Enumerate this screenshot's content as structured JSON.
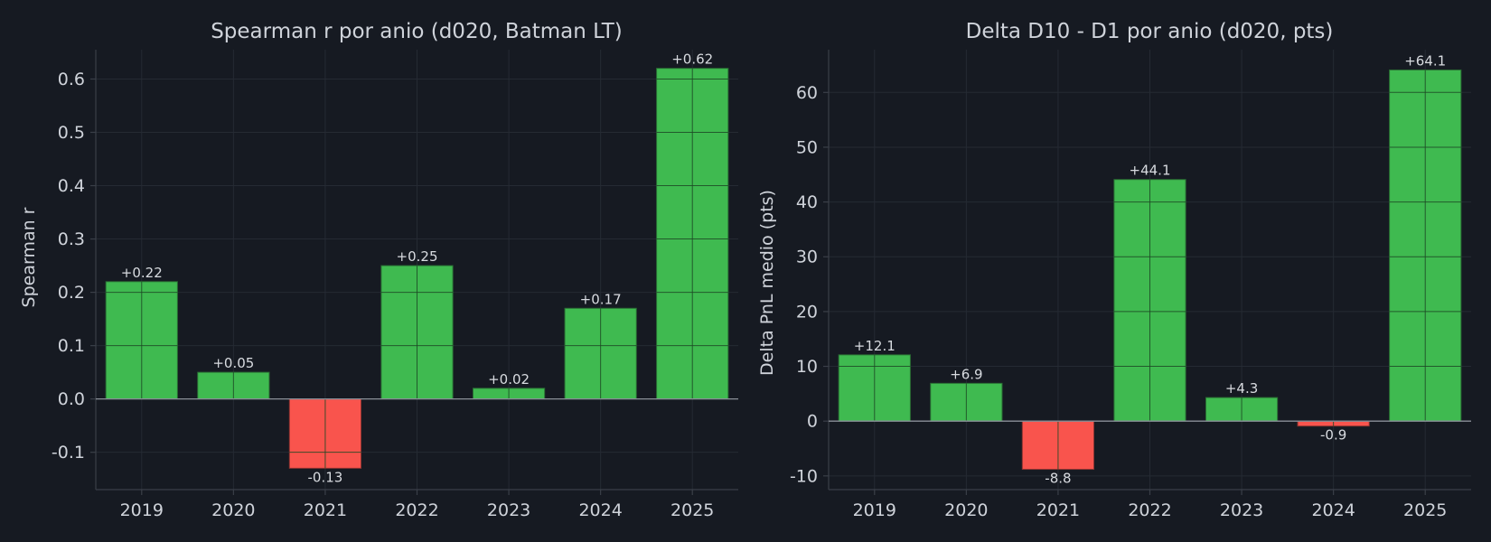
{
  "colors": {
    "background": "#161a22",
    "positive": "#3fba50",
    "negative": "#f9544d",
    "text": "#cfd3da"
  },
  "chart_data": [
    {
      "type": "bar",
      "title": "Spearman r por anio (d020, Batman LT)",
      "xlabel": "",
      "ylabel": "Spearman r",
      "categories": [
        "2019",
        "2020",
        "2021",
        "2022",
        "2023",
        "2024",
        "2025"
      ],
      "values": [
        0.22,
        0.05,
        -0.13,
        0.25,
        0.02,
        0.17,
        0.62
      ],
      "data_labels": [
        "+0.22",
        "+0.05",
        "-0.13",
        "+0.25",
        "+0.02",
        "+0.17",
        "+0.62"
      ],
      "yticks": [
        -0.1,
        0.0,
        0.1,
        0.2,
        0.3,
        0.4,
        0.5,
        0.6
      ],
      "ytick_labels": [
        "-0.1",
        "0.0",
        "0.1",
        "0.2",
        "0.3",
        "0.4",
        "0.5",
        "0.6"
      ],
      "ylim": [
        -0.17,
        0.655
      ],
      "grid": true,
      "legend": false
    },
    {
      "type": "bar",
      "title": "Delta D10 - D1 por anio (d020, pts)",
      "xlabel": "",
      "ylabel": "Delta PnL medio (pts)",
      "categories": [
        "2019",
        "2020",
        "2021",
        "2022",
        "2023",
        "2024",
        "2025"
      ],
      "values": [
        12.1,
        6.9,
        -8.8,
        44.1,
        4.3,
        -0.9,
        64.1
      ],
      "data_labels": [
        "+12.1",
        "+6.9",
        "-8.8",
        "+44.1",
        "+4.3",
        "-0.9",
        "+64.1"
      ],
      "yticks": [
        -10,
        0,
        10,
        20,
        30,
        40,
        50,
        60
      ],
      "ytick_labels": [
        "-10",
        "0",
        "10",
        "20",
        "30",
        "40",
        "50",
        "60"
      ],
      "ylim": [
        -12.5,
        67.8
      ],
      "grid": true,
      "legend": false
    }
  ]
}
